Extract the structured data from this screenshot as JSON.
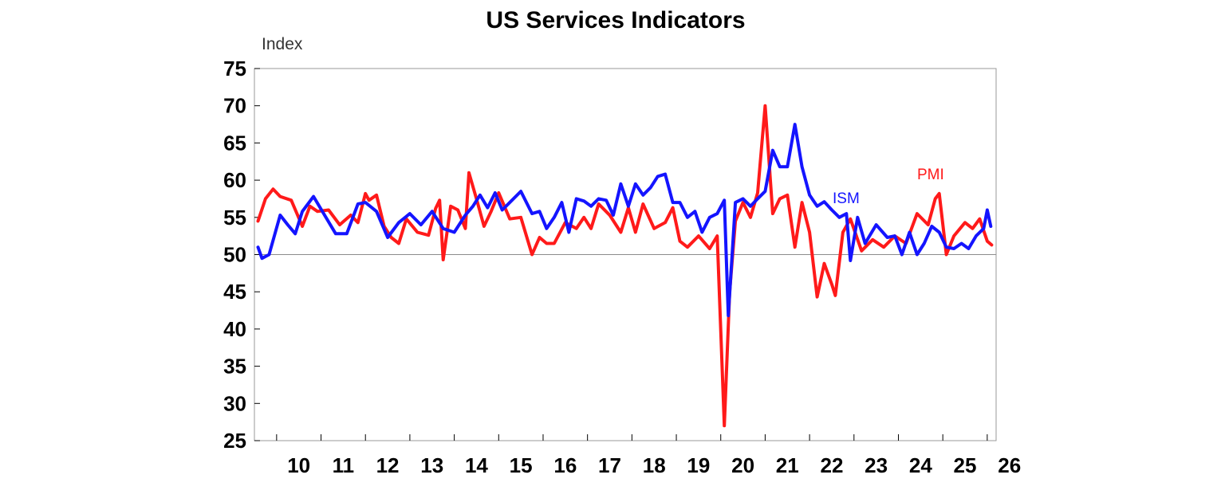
{
  "chart_data": {
    "type": "line",
    "title": "US Services Indicators",
    "ylabel": "Index",
    "xlabel": "",
    "ylim": [
      25,
      75
    ],
    "yticks": [
      75,
      70,
      65,
      60,
      55,
      50,
      45,
      40,
      35,
      30,
      25
    ],
    "xlim": [
      2009.5,
      2026.2
    ],
    "xticks": [
      "10",
      "11",
      "12",
      "13",
      "14",
      "15",
      "16",
      "17",
      "18",
      "19",
      "20",
      "21",
      "22",
      "23",
      "24",
      "25",
      "26"
    ],
    "reference_line": 50,
    "grid": false,
    "legend": "inline labels",
    "series": [
      {
        "name": "PMI",
        "color": "#ff1a1a",
        "x": [
          2009.58,
          2009.75,
          2009.92,
          2010.08,
          2010.33,
          2010.58,
          2010.75,
          2010.92,
          2011.17,
          2011.42,
          2011.67,
          2011.83,
          2012.0,
          2012.08,
          2012.25,
          2012.42,
          2012.58,
          2012.75,
          2012.92,
          2013.17,
          2013.42,
          2013.58,
          2013.67,
          2013.75,
          2013.92,
          2014.08,
          2014.25,
          2014.33,
          2014.5,
          2014.67,
          2014.83,
          2015.0,
          2015.25,
          2015.5,
          2015.75,
          2015.92,
          2016.08,
          2016.25,
          2016.5,
          2016.75,
          2016.92,
          2017.08,
          2017.25,
          2017.5,
          2017.75,
          2017.92,
          2018.08,
          2018.25,
          2018.5,
          2018.75,
          2018.92,
          2019.08,
          2019.25,
          2019.5,
          2019.75,
          2019.92,
          2020.08,
          2020.2,
          2020.33,
          2020.5,
          2020.67,
          2020.83,
          2021.0,
          2021.17,
          2021.33,
          2021.5,
          2021.67,
          2021.83,
          2022.0,
          2022.17,
          2022.33,
          2022.5,
          2022.58,
          2022.75,
          2022.92,
          2023.17,
          2023.42,
          2023.67,
          2023.92,
          2024.17,
          2024.42,
          2024.67,
          2024.83,
          2024.92,
          2025.08,
          2025.25,
          2025.5,
          2025.67,
          2025.83,
          2026.0,
          2026.1
        ],
        "values": [
          54.5,
          57.5,
          58.8,
          57.8,
          57.3,
          53.8,
          56.5,
          55.8,
          56.0,
          54.0,
          55.3,
          54.3,
          58.2,
          57.3,
          58.0,
          53.8,
          52.3,
          51.5,
          54.8,
          53.0,
          52.6,
          56.2,
          57.3,
          49.3,
          56.5,
          56.0,
          53.5,
          61.0,
          57.5,
          53.8,
          55.8,
          58.3,
          54.8,
          55.0,
          50.0,
          52.3,
          51.5,
          51.5,
          54.3,
          53.5,
          55.0,
          53.5,
          56.8,
          55.3,
          53.0,
          56.3,
          53.0,
          56.8,
          53.5,
          54.3,
          56.3,
          51.8,
          51.0,
          52.5,
          50.8,
          52.5,
          27.0,
          45.0,
          54.5,
          57.0,
          55.0,
          58.3,
          70.0,
          55.5,
          57.5,
          58.0,
          51.0,
          57.0,
          53.0,
          44.3,
          48.8,
          46.0,
          44.5,
          53.0,
          54.8,
          50.5,
          52.0,
          51.0,
          52.5,
          51.5,
          55.5,
          54.0,
          57.5,
          58.2,
          50.0,
          52.5,
          54.3,
          53.5,
          54.8,
          51.8,
          51.3
        ]
      },
      {
        "name": "ISM",
        "color": "#1414ff",
        "x": [
          2009.58,
          2009.67,
          2009.83,
          2010.08,
          2010.25,
          2010.42,
          2010.58,
          2010.83,
          2011.08,
          2011.33,
          2011.58,
          2011.83,
          2012.0,
          2012.25,
          2012.5,
          2012.75,
          2013.0,
          2013.25,
          2013.5,
          2013.75,
          2014.0,
          2014.25,
          2014.42,
          2014.58,
          2014.75,
          2014.92,
          2015.08,
          2015.25,
          2015.5,
          2015.75,
          2015.92,
          2016.08,
          2016.25,
          2016.42,
          2016.58,
          2016.75,
          2016.92,
          2017.08,
          2017.25,
          2017.42,
          2017.58,
          2017.75,
          2017.92,
          2018.08,
          2018.25,
          2018.42,
          2018.58,
          2018.75,
          2018.92,
          2019.08,
          2019.25,
          2019.42,
          2019.58,
          2019.75,
          2019.92,
          2020.08,
          2020.17,
          2020.33,
          2020.5,
          2020.67,
          2020.83,
          2021.0,
          2021.17,
          2021.33,
          2021.5,
          2021.67,
          2021.83,
          2022.0,
          2022.17,
          2022.33,
          2022.5,
          2022.67,
          2022.83,
          2022.92,
          2023.08,
          2023.25,
          2023.5,
          2023.75,
          2023.92,
          2024.08,
          2024.25,
          2024.42,
          2024.58,
          2024.75,
          2024.92,
          2025.08,
          2025.25,
          2025.42,
          2025.58,
          2025.75,
          2025.92,
          2026.0,
          2026.08
        ],
        "values": [
          51.0,
          49.5,
          50.0,
          55.3,
          54.0,
          52.8,
          55.8,
          57.8,
          55.3,
          52.8,
          52.8,
          56.8,
          57.0,
          55.8,
          52.3,
          54.3,
          55.5,
          54.0,
          55.8,
          53.5,
          53.0,
          55.3,
          56.5,
          58.0,
          56.3,
          58.3,
          56.0,
          57.0,
          58.5,
          55.5,
          55.8,
          53.5,
          55.0,
          57.0,
          53.0,
          57.5,
          57.2,
          56.5,
          57.5,
          57.3,
          55.3,
          59.5,
          56.5,
          59.5,
          58.0,
          59.0,
          60.5,
          60.8,
          57.0,
          57.0,
          55.0,
          55.8,
          53.0,
          55.0,
          55.5,
          57.3,
          41.8,
          57.0,
          57.5,
          56.5,
          57.5,
          58.5,
          64.0,
          61.8,
          61.8,
          67.5,
          61.8,
          58.0,
          56.5,
          57.1,
          56.0,
          55.0,
          55.5,
          49.2,
          55.0,
          51.5,
          54.0,
          52.3,
          52.5,
          50.0,
          53.0,
          50.0,
          51.5,
          53.8,
          53.0,
          51.0,
          50.8,
          51.5,
          50.8,
          52.5,
          53.5,
          56.0,
          53.8
        ]
      }
    ],
    "annotations": [
      {
        "text": "ISM",
        "color": "#1414ff"
      },
      {
        "text": "PMI",
        "color": "#ff1a1a"
      }
    ]
  }
}
